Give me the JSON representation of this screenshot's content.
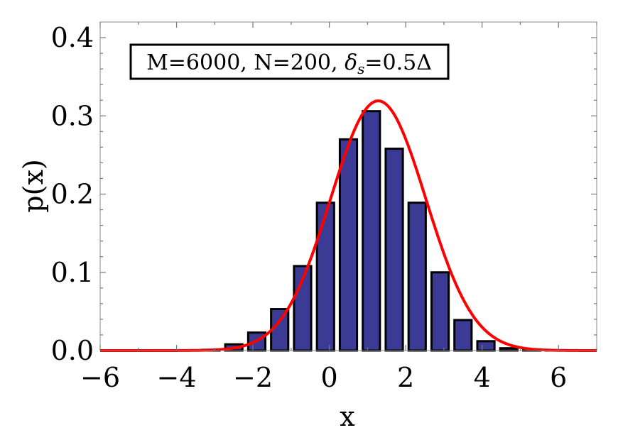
{
  "chart_data": {
    "type": "bar",
    "title": "",
    "xlabel": "x",
    "ylabel": "p(x)",
    "xlim": [
      -6,
      7
    ],
    "ylim": [
      0,
      0.42
    ],
    "x_ticks": [
      "−6",
      "−4",
      "−2",
      "0",
      "2",
      "4",
      "6"
    ],
    "y_ticks": [
      "0.0",
      "0.1",
      "0.2",
      "0.3",
      "0.4"
    ],
    "annotation": {
      "prefix": "M=6000, N=200, ",
      "symbol": "δ",
      "subscript": "s",
      "suffix": "=0.5Δ"
    },
    "bar_width": 0.45,
    "bars": [
      {
        "x": -4.3,
        "y": 0.0005
      },
      {
        "x": -3.7,
        "y": 0.0005
      },
      {
        "x": -3.1,
        "y": 0.001
      },
      {
        "x": -2.5,
        "y": 0.008
      },
      {
        "x": -1.9,
        "y": 0.023
      },
      {
        "x": -1.3,
        "y": 0.053
      },
      {
        "x": -0.7,
        "y": 0.108
      },
      {
        "x": -0.1,
        "y": 0.189
      },
      {
        "x": 0.5,
        "y": 0.27
      },
      {
        "x": 1.1,
        "y": 0.306
      },
      {
        "x": 1.7,
        "y": 0.258
      },
      {
        "x": 2.3,
        "y": 0.189
      },
      {
        "x": 2.9,
        "y": 0.1
      },
      {
        "x": 3.5,
        "y": 0.039
      },
      {
        "x": 4.1,
        "y": 0.012
      },
      {
        "x": 4.7,
        "y": 0.003
      },
      {
        "x": 5.3,
        "y": 0.001
      },
      {
        "x": 5.9,
        "y": 0.0005
      }
    ],
    "curve": {
      "mean": 1.28,
      "sigma": 1.25
    },
    "colors": {
      "bar_fill": "#3b3b95",
      "bar_stroke": "#000000",
      "curve": "#ff0000",
      "frame": "#888888"
    }
  }
}
